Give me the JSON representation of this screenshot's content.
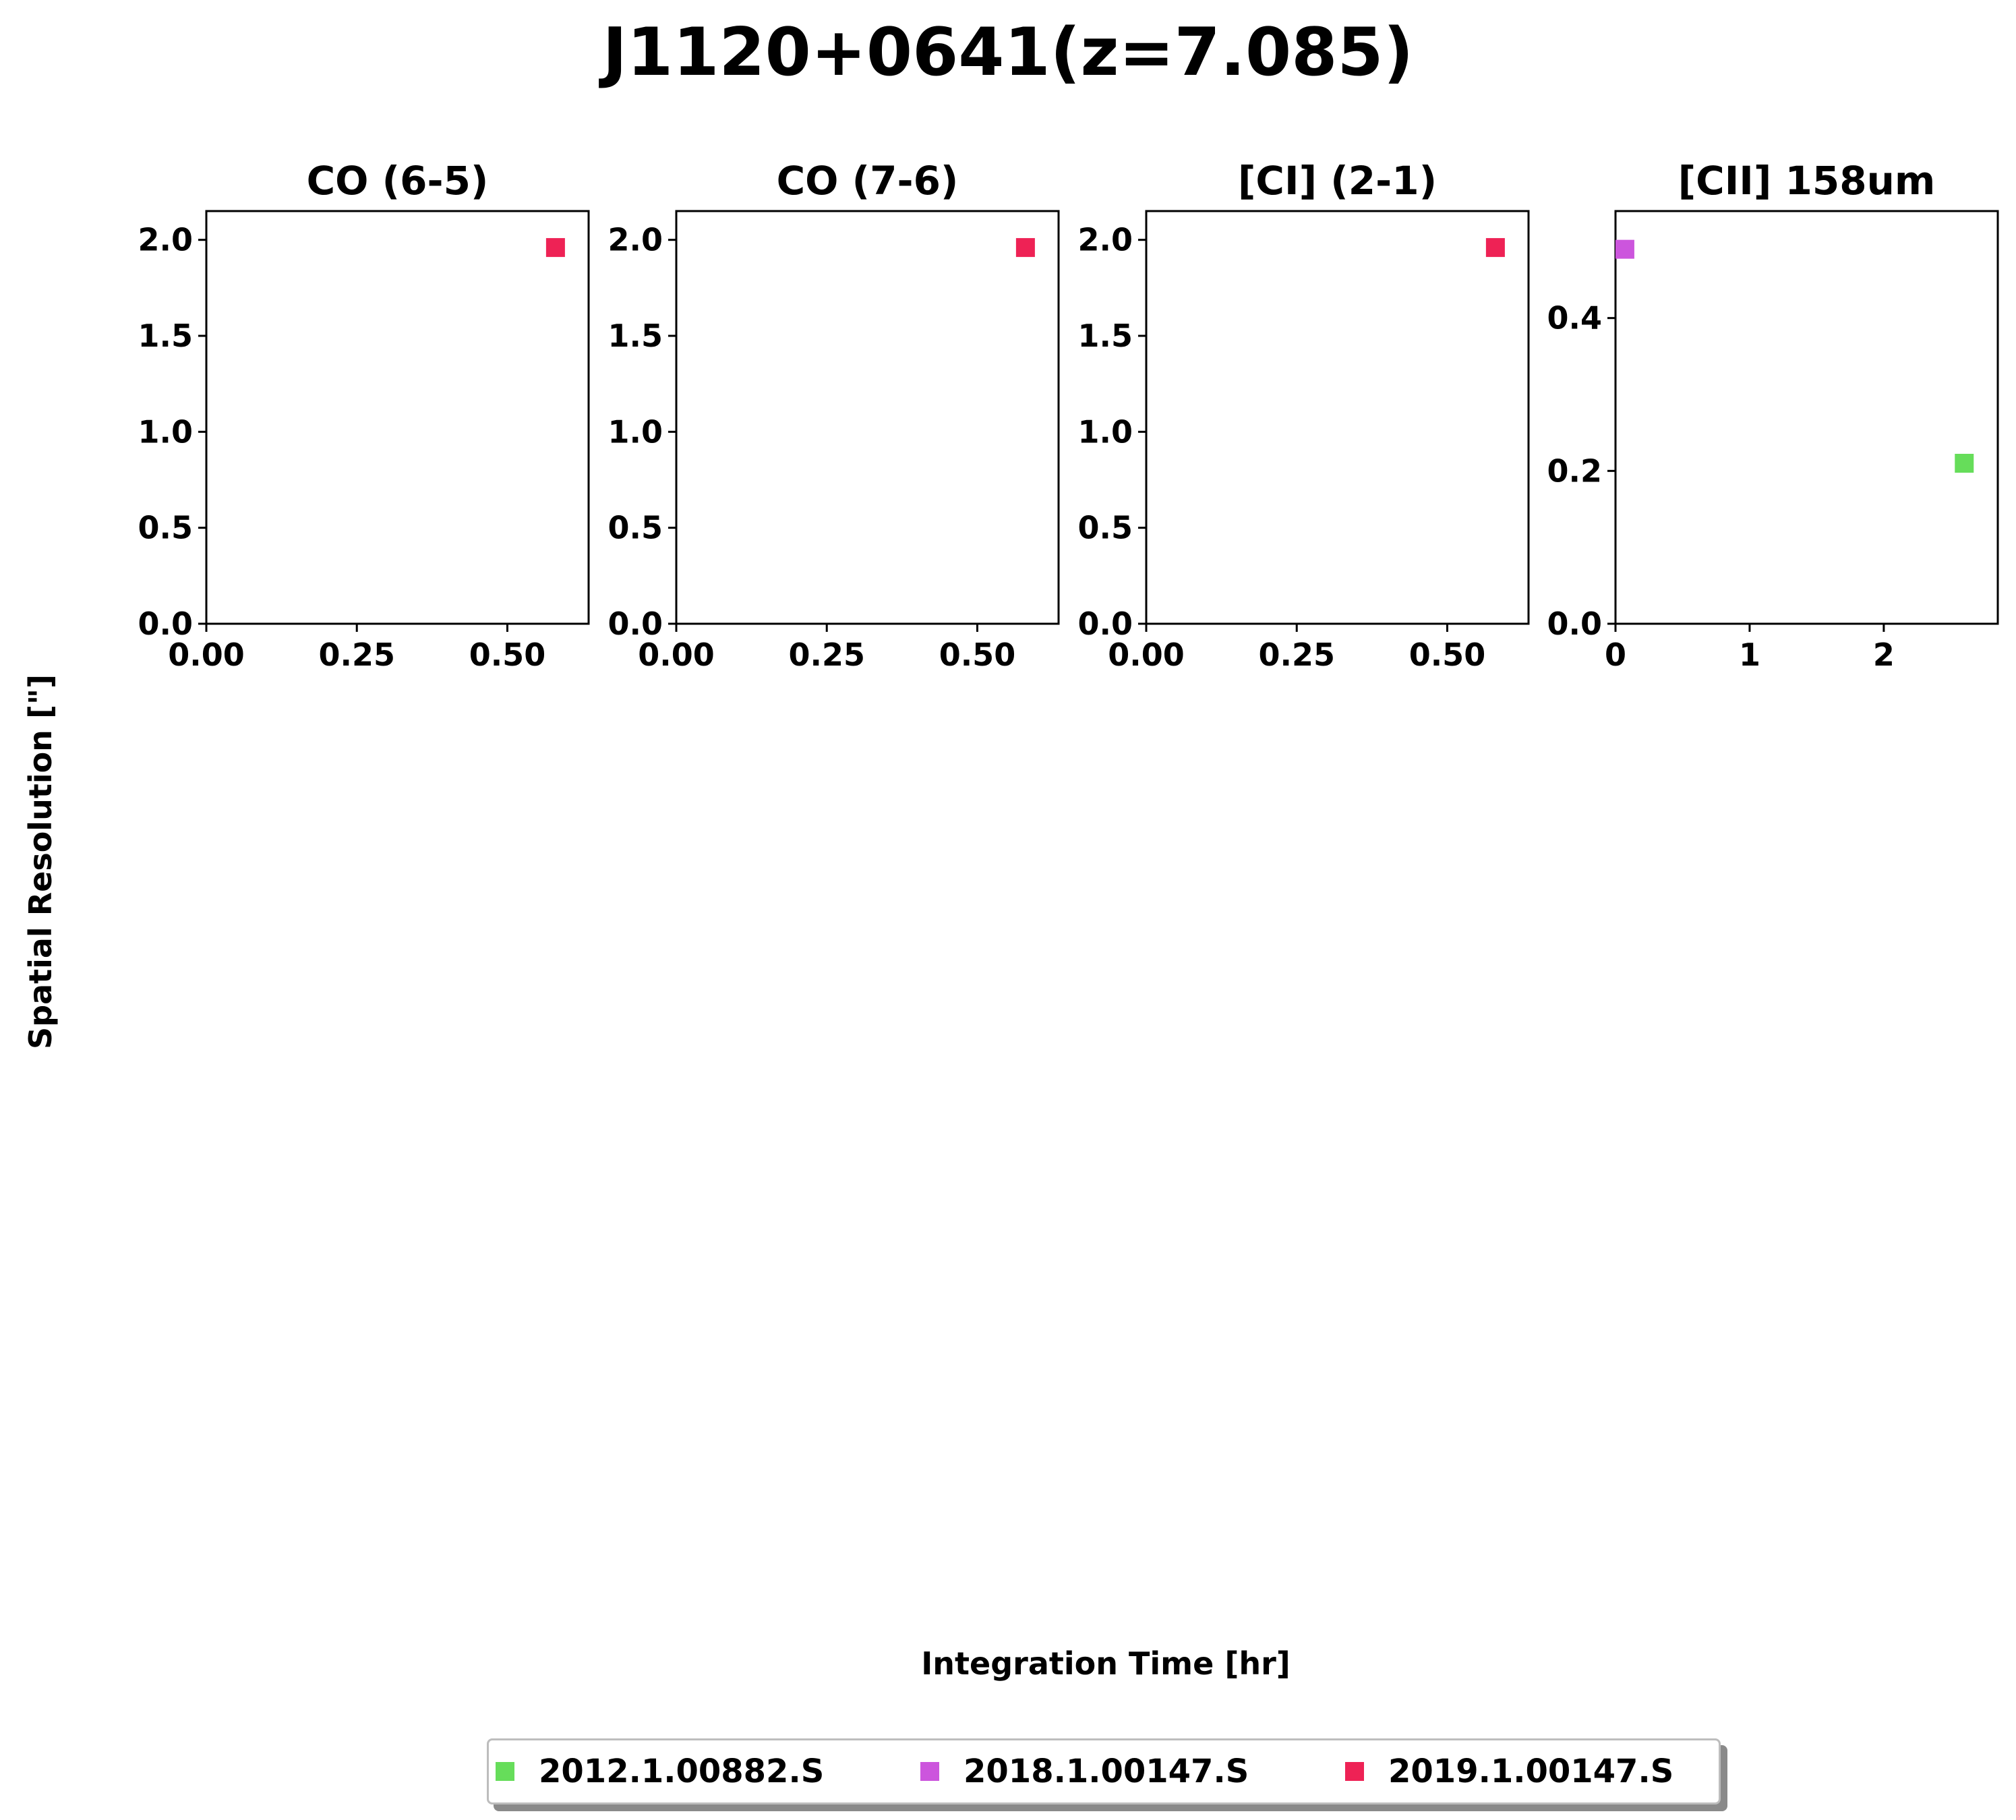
{
  "figure": {
    "title": "J1120+0641(z=7.085)",
    "ylabel": "Spatial Resolution [\"]",
    "xlabel": "Integration Time [hr]"
  },
  "legend": {
    "placement": "bottom-center",
    "items": [
      {
        "label": "2012.1.00882.S",
        "color": "#66dd5a"
      },
      {
        "label": "2018.1.00147.S",
        "color": "#cc55dd"
      },
      {
        "label": "2019.1.00147.S",
        "color": "#ee2255"
      }
    ]
  },
  "chart_data": [
    {
      "type": "scatter",
      "title": "CO (6-5)",
      "xlim": [
        0,
        0.635
      ],
      "ylim": [
        0,
        2.15
      ],
      "xticks": [
        0,
        0.25,
        0.5
      ],
      "xtick_labels": [
        "0.00",
        "0.25",
        "0.50"
      ],
      "yticks": [
        0,
        0.5,
        1.0,
        1.5,
        2.0
      ],
      "ytick_labels": [
        "0.0",
        "0.5",
        "1.0",
        "1.5",
        "2.0"
      ],
      "points": [
        {
          "series": "2019.1.00147.S",
          "x": 0.58,
          "y": 1.96
        }
      ]
    },
    {
      "type": "scatter",
      "title": "CO (7-6)",
      "xlim": [
        0,
        0.635
      ],
      "ylim": [
        0,
        2.15
      ],
      "xticks": [
        0,
        0.25,
        0.5
      ],
      "xtick_labels": [
        "0.00",
        "0.25",
        "0.50"
      ],
      "yticks": [
        0,
        0.5,
        1.0,
        1.5,
        2.0
      ],
      "ytick_labels": [
        "0.0",
        "0.5",
        "1.0",
        "1.5",
        "2.0"
      ],
      "points": [
        {
          "series": "2019.1.00147.S",
          "x": 0.58,
          "y": 1.96
        }
      ]
    },
    {
      "type": "scatter",
      "title": "[CI] (2-1)",
      "xlim": [
        0,
        0.635
      ],
      "ylim": [
        0,
        2.15
      ],
      "xticks": [
        0,
        0.25,
        0.5
      ],
      "xtick_labels": [
        "0.00",
        "0.25",
        "0.50"
      ],
      "yticks": [
        0,
        0.5,
        1.0,
        1.5,
        2.0
      ],
      "ytick_labels": [
        "0.0",
        "0.5",
        "1.0",
        "1.5",
        "2.0"
      ],
      "points": [
        {
          "series": "2019.1.00147.S",
          "x": 0.58,
          "y": 1.96
        }
      ]
    },
    {
      "type": "scatter",
      "title": "[CII] 158um",
      "xlim": [
        0,
        2.85
      ],
      "ylim": [
        0,
        0.54
      ],
      "xticks": [
        0,
        1,
        2
      ],
      "xtick_labels": [
        "0",
        "1",
        "2"
      ],
      "yticks": [
        0,
        0.2,
        0.4
      ],
      "ytick_labels": [
        "0.0",
        "0.2",
        "0.4"
      ],
      "points": [
        {
          "series": "2018.1.00147.S",
          "x": 0.07,
          "y": 0.49
        },
        {
          "series": "2012.1.00882.S",
          "x": 2.6,
          "y": 0.21
        }
      ]
    }
  ]
}
